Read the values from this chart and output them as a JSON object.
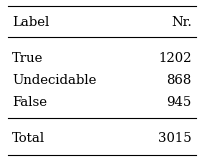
{
  "col_headers": [
    "Label",
    "Nr."
  ],
  "rows": [
    [
      "True",
      "1202"
    ],
    [
      "Undecidable",
      "868"
    ],
    [
      "False",
      "945"
    ]
  ],
  "total_row": [
    "Total",
    "3015"
  ],
  "bg_color": "#ffffff",
  "text_color": "#000000",
  "font_size": 9.5
}
